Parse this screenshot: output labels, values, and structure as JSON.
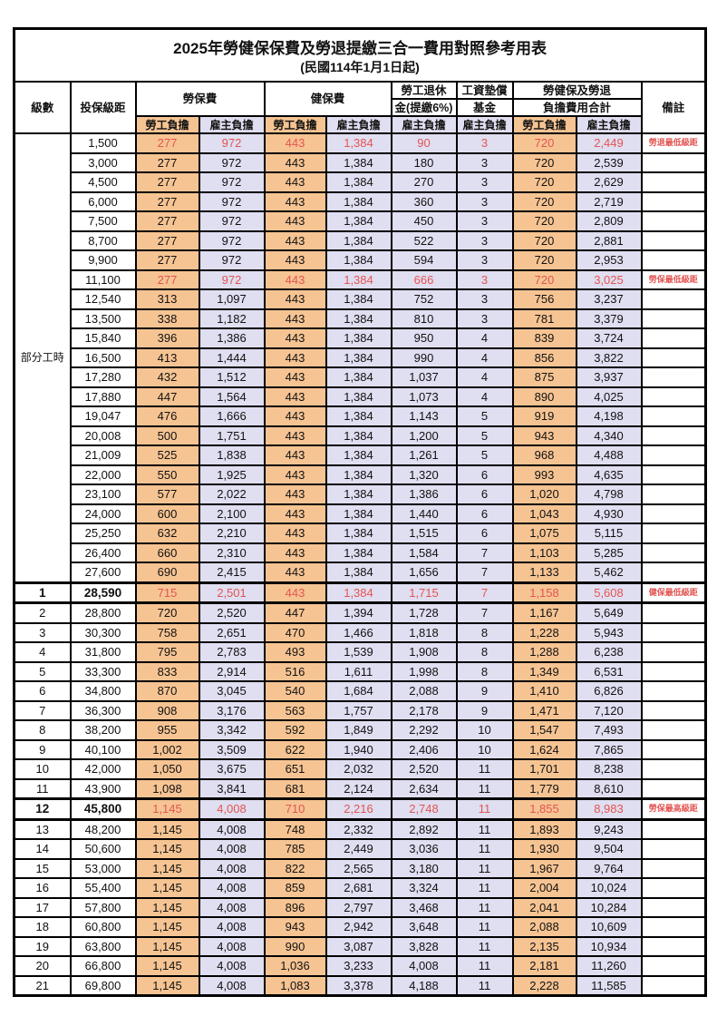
{
  "title": "2025年勞健保保費及勞退提繳三合一費用對照參考用表",
  "subtitle": "(民國114年1月1日起)",
  "part_time_label": "部分工時",
  "colors": {
    "employee_col_bg": "#F6C493",
    "employer_col_bg": "#E0DEF1",
    "highlight_red": "#E25552",
    "border": "#000000"
  },
  "columns": {
    "level": "級數",
    "bracket": "投保級距",
    "labor": "勞保費",
    "health": "健保費",
    "pension_line1": "勞工退休",
    "pension_line2": "金(提繳6%)",
    "wage_fund_line1": "工資墊償",
    "wage_fund_line2": "基金",
    "total_line1": "勞健保及勞退",
    "total_line2": "負擔費用合計",
    "remark": "備註",
    "employee": "勞工負擔",
    "employer": "雇主負擔"
  },
  "table": {
    "part_time_rowspan": 23,
    "value_col_classes": [
      "emp",
      "er",
      "emp",
      "er",
      "er",
      "er",
      "emp",
      "er"
    ],
    "rows": [
      {
        "lv": "",
        "br": "1,500",
        "v": [
          "277",
          "972",
          "443",
          "1,384",
          "90",
          "3",
          "720",
          "2,449"
        ],
        "rm": "勞退最低級距",
        "red": true
      },
      {
        "lv": "",
        "br": "3,000",
        "v": [
          "277",
          "972",
          "443",
          "1,384",
          "180",
          "3",
          "720",
          "2,539"
        ],
        "rm": ""
      },
      {
        "lv": "",
        "br": "4,500",
        "v": [
          "277",
          "972",
          "443",
          "1,384",
          "270",
          "3",
          "720",
          "2,629"
        ],
        "rm": ""
      },
      {
        "lv": "",
        "br": "6,000",
        "v": [
          "277",
          "972",
          "443",
          "1,384",
          "360",
          "3",
          "720",
          "2,719"
        ],
        "rm": ""
      },
      {
        "lv": "",
        "br": "7,500",
        "v": [
          "277",
          "972",
          "443",
          "1,384",
          "450",
          "3",
          "720",
          "2,809"
        ],
        "rm": ""
      },
      {
        "lv": "",
        "br": "8,700",
        "v": [
          "277",
          "972",
          "443",
          "1,384",
          "522",
          "3",
          "720",
          "2,881"
        ],
        "rm": ""
      },
      {
        "lv": "",
        "br": "9,900",
        "v": [
          "277",
          "972",
          "443",
          "1,384",
          "594",
          "3",
          "720",
          "2,953"
        ],
        "rm": ""
      },
      {
        "lv": "",
        "br": "11,100",
        "v": [
          "277",
          "972",
          "443",
          "1,384",
          "666",
          "3",
          "720",
          "3,025"
        ],
        "rm": "勞保最低級距",
        "red": true
      },
      {
        "lv": "",
        "br": "12,540",
        "v": [
          "313",
          "1,097",
          "443",
          "1,384",
          "752",
          "3",
          "756",
          "3,237"
        ],
        "rm": ""
      },
      {
        "lv": "",
        "br": "13,500",
        "v": [
          "338",
          "1,182",
          "443",
          "1,384",
          "810",
          "3",
          "781",
          "3,379"
        ],
        "rm": ""
      },
      {
        "lv": "",
        "br": "15,840",
        "v": [
          "396",
          "1,386",
          "443",
          "1,384",
          "950",
          "4",
          "839",
          "3,724"
        ],
        "rm": ""
      },
      {
        "lv": "",
        "br": "16,500",
        "v": [
          "413",
          "1,444",
          "443",
          "1,384",
          "990",
          "4",
          "856",
          "3,822"
        ],
        "rm": ""
      },
      {
        "lv": "",
        "br": "17,280",
        "v": [
          "432",
          "1,512",
          "443",
          "1,384",
          "1,037",
          "4",
          "875",
          "3,937"
        ],
        "rm": ""
      },
      {
        "lv": "",
        "br": "17,880",
        "v": [
          "447",
          "1,564",
          "443",
          "1,384",
          "1,073",
          "4",
          "890",
          "4,025"
        ],
        "rm": ""
      },
      {
        "lv": "",
        "br": "19,047",
        "v": [
          "476",
          "1,666",
          "443",
          "1,384",
          "1,143",
          "5",
          "919",
          "4,198"
        ],
        "rm": ""
      },
      {
        "lv": "",
        "br": "20,008",
        "v": [
          "500",
          "1,751",
          "443",
          "1,384",
          "1,200",
          "5",
          "943",
          "4,340"
        ],
        "rm": ""
      },
      {
        "lv": "",
        "br": "21,009",
        "v": [
          "525",
          "1,838",
          "443",
          "1,384",
          "1,261",
          "5",
          "968",
          "4,488"
        ],
        "rm": ""
      },
      {
        "lv": "",
        "br": "22,000",
        "v": [
          "550",
          "1,925",
          "443",
          "1,384",
          "1,320",
          "6",
          "993",
          "4,635"
        ],
        "rm": ""
      },
      {
        "lv": "",
        "br": "23,100",
        "v": [
          "577",
          "2,022",
          "443",
          "1,384",
          "1,386",
          "6",
          "1,020",
          "4,798"
        ],
        "rm": ""
      },
      {
        "lv": "",
        "br": "24,000",
        "v": [
          "600",
          "2,100",
          "443",
          "1,384",
          "1,440",
          "6",
          "1,043",
          "4,930"
        ],
        "rm": ""
      },
      {
        "lv": "",
        "br": "25,250",
        "v": [
          "632",
          "2,210",
          "443",
          "1,384",
          "1,515",
          "6",
          "1,075",
          "5,115"
        ],
        "rm": ""
      },
      {
        "lv": "",
        "br": "26,400",
        "v": [
          "660",
          "2,310",
          "443",
          "1,384",
          "1,584",
          "7",
          "1,103",
          "5,285"
        ],
        "rm": ""
      },
      {
        "lv": "",
        "br": "27,600",
        "v": [
          "690",
          "2,415",
          "443",
          "1,384",
          "1,656",
          "7",
          "1,133",
          "5,462"
        ],
        "rm": ""
      },
      {
        "lv": "1",
        "br": "28,590",
        "v": [
          "715",
          "2,501",
          "443",
          "1,384",
          "1,715",
          "7",
          "1,158",
          "5,608"
        ],
        "rm": "健保最低級距",
        "red": true,
        "em": true
      },
      {
        "lv": "2",
        "br": "28,800",
        "v": [
          "720",
          "2,520",
          "447",
          "1,394",
          "1,728",
          "7",
          "1,167",
          "5,649"
        ],
        "rm": ""
      },
      {
        "lv": "3",
        "br": "30,300",
        "v": [
          "758",
          "2,651",
          "470",
          "1,466",
          "1,818",
          "8",
          "1,228",
          "5,943"
        ],
        "rm": ""
      },
      {
        "lv": "4",
        "br": "31,800",
        "v": [
          "795",
          "2,783",
          "493",
          "1,539",
          "1,908",
          "8",
          "1,288",
          "6,238"
        ],
        "rm": ""
      },
      {
        "lv": "5",
        "br": "33,300",
        "v": [
          "833",
          "2,914",
          "516",
          "1,611",
          "1,998",
          "8",
          "1,349",
          "6,531"
        ],
        "rm": ""
      },
      {
        "lv": "6",
        "br": "34,800",
        "v": [
          "870",
          "3,045",
          "540",
          "1,684",
          "2,088",
          "9",
          "1,410",
          "6,826"
        ],
        "rm": ""
      },
      {
        "lv": "7",
        "br": "36,300",
        "v": [
          "908",
          "3,176",
          "563",
          "1,757",
          "2,178",
          "9",
          "1,471",
          "7,120"
        ],
        "rm": ""
      },
      {
        "lv": "8",
        "br": "38,200",
        "v": [
          "955",
          "3,342",
          "592",
          "1,849",
          "2,292",
          "10",
          "1,547",
          "7,493"
        ],
        "rm": ""
      },
      {
        "lv": "9",
        "br": "40,100",
        "v": [
          "1,002",
          "3,509",
          "622",
          "1,940",
          "2,406",
          "10",
          "1,624",
          "7,865"
        ],
        "rm": ""
      },
      {
        "lv": "10",
        "br": "42,000",
        "v": [
          "1,050",
          "3,675",
          "651",
          "2,032",
          "2,520",
          "11",
          "1,701",
          "8,238"
        ],
        "rm": ""
      },
      {
        "lv": "11",
        "br": "43,900",
        "v": [
          "1,098",
          "3,841",
          "681",
          "2,124",
          "2,634",
          "11",
          "1,779",
          "8,610"
        ],
        "rm": ""
      },
      {
        "lv": "12",
        "br": "45,800",
        "v": [
          "1,145",
          "4,008",
          "710",
          "2,216",
          "2,748",
          "11",
          "1,855",
          "8,983"
        ],
        "rm": "勞保最高級距",
        "red": true,
        "em": true
      },
      {
        "lv": "13",
        "br": "48,200",
        "v": [
          "1,145",
          "4,008",
          "748",
          "2,332",
          "2,892",
          "11",
          "1,893",
          "9,243"
        ],
        "rm": ""
      },
      {
        "lv": "14",
        "br": "50,600",
        "v": [
          "1,145",
          "4,008",
          "785",
          "2,449",
          "3,036",
          "11",
          "1,930",
          "9,504"
        ],
        "rm": ""
      },
      {
        "lv": "15",
        "br": "53,000",
        "v": [
          "1,145",
          "4,008",
          "822",
          "2,565",
          "3,180",
          "11",
          "1,967",
          "9,764"
        ],
        "rm": ""
      },
      {
        "lv": "16",
        "br": "55,400",
        "v": [
          "1,145",
          "4,008",
          "859",
          "2,681",
          "3,324",
          "11",
          "2,004",
          "10,024"
        ],
        "rm": ""
      },
      {
        "lv": "17",
        "br": "57,800",
        "v": [
          "1,145",
          "4,008",
          "896",
          "2,797",
          "3,468",
          "11",
          "2,041",
          "10,284"
        ],
        "rm": ""
      },
      {
        "lv": "18",
        "br": "60,800",
        "v": [
          "1,145",
          "4,008",
          "943",
          "2,942",
          "3,648",
          "11",
          "2,088",
          "10,609"
        ],
        "rm": ""
      },
      {
        "lv": "19",
        "br": "63,800",
        "v": [
          "1,145",
          "4,008",
          "990",
          "3,087",
          "3,828",
          "11",
          "2,135",
          "10,934"
        ],
        "rm": ""
      },
      {
        "lv": "20",
        "br": "66,800",
        "v": [
          "1,145",
          "4,008",
          "1,036",
          "3,233",
          "4,008",
          "11",
          "2,181",
          "11,260"
        ],
        "rm": ""
      },
      {
        "lv": "21",
        "br": "69,800",
        "v": [
          "1,145",
          "4,008",
          "1,083",
          "3,378",
          "4,188",
          "11",
          "2,228",
          "11,585"
        ],
        "rm": ""
      }
    ]
  }
}
